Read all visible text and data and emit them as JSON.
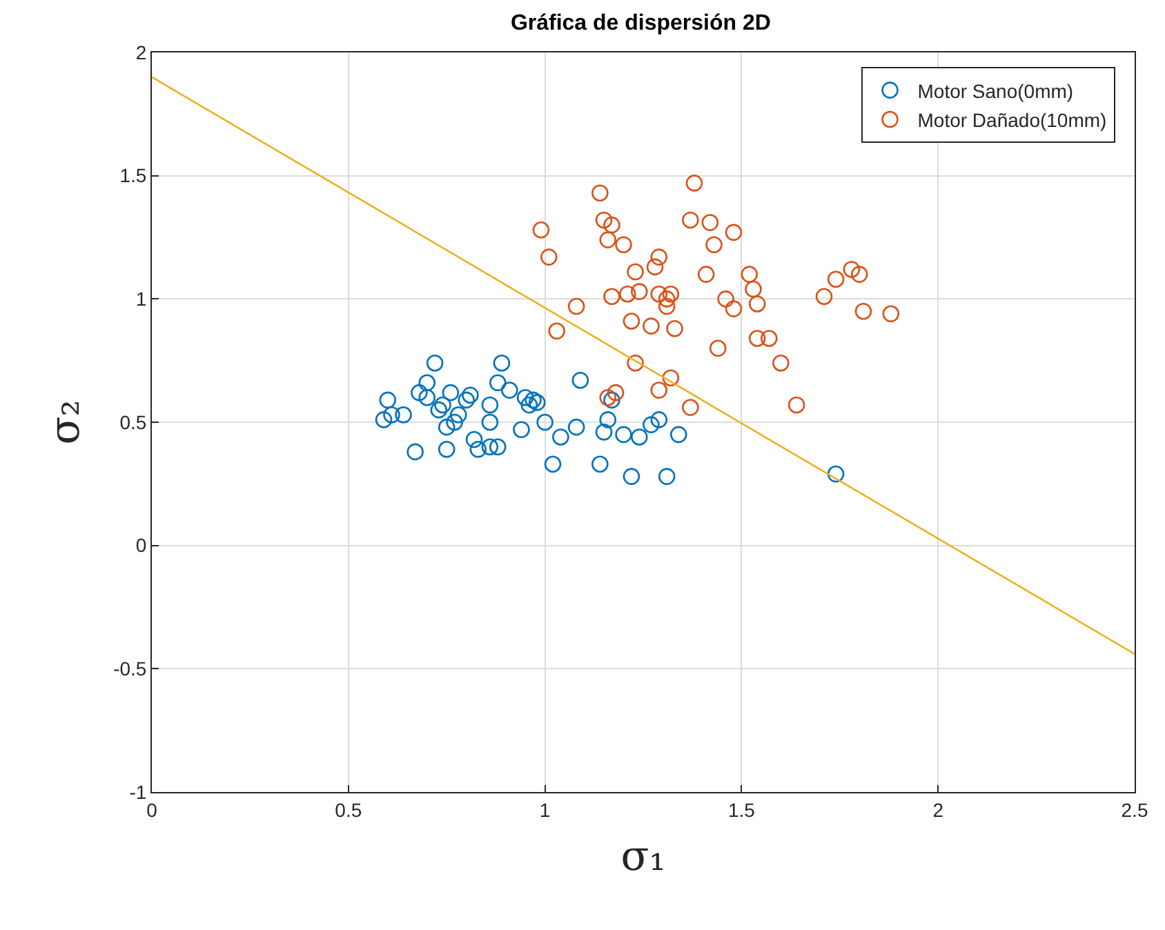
{
  "chart_data": {
    "type": "scatter",
    "title": "Gráfica de dispersión 2D",
    "xlabel": "σ₁",
    "ylabel": "σ₂",
    "xlim": [
      0,
      2.5
    ],
    "xticks": [
      0,
      0.5,
      1,
      1.5,
      2,
      2.5
    ],
    "ylim": [
      -1,
      2
    ],
    "yticks": [
      -1,
      -0.5,
      0,
      0.5,
      1,
      1.5,
      2
    ],
    "grid": true,
    "legend": "top right",
    "series": [
      {
        "name": "Motor Sano(0mm)",
        "color": "#0072bd",
        "marker": "circle",
        "x": [
          0.59,
          0.6,
          0.61,
          0.64,
          0.67,
          0.68,
          0.7,
          0.7,
          0.72,
          0.73,
          0.74,
          0.75,
          0.75,
          0.76,
          0.77,
          0.78,
          0.8,
          0.81,
          0.82,
          0.83,
          0.86,
          0.86,
          0.86,
          0.88,
          0.88,
          0.89,
          0.91,
          0.94,
          0.95,
          0.96,
          0.97,
          0.98,
          1.0,
          1.02,
          1.04,
          1.08,
          1.09,
          1.14,
          1.15,
          1.16,
          1.17,
          1.2,
          1.22,
          1.24,
          1.27,
          1.29,
          1.31,
          1.34,
          1.74
        ],
        "values": [
          0.51,
          0.59,
          0.53,
          0.53,
          0.38,
          0.62,
          0.6,
          0.66,
          0.74,
          0.55,
          0.57,
          0.48,
          0.39,
          0.62,
          0.5,
          0.53,
          0.59,
          0.61,
          0.43,
          0.39,
          0.4,
          0.5,
          0.57,
          0.4,
          0.66,
          0.74,
          0.63,
          0.47,
          0.6,
          0.57,
          0.59,
          0.58,
          0.5,
          0.33,
          0.44,
          0.48,
          0.67,
          0.33,
          0.46,
          0.51,
          0.59,
          0.45,
          0.28,
          0.44,
          0.49,
          0.51,
          0.28,
          0.45,
          0.29
        ]
      },
      {
        "name": "Motor Dañado(10mm)",
        "color": "#d95319",
        "marker": "circle",
        "x": [
          0.99,
          1.01,
          1.03,
          1.08,
          1.14,
          1.15,
          1.16,
          1.17,
          1.17,
          1.18,
          1.16,
          1.2,
          1.21,
          1.22,
          1.23,
          1.23,
          1.24,
          1.27,
          1.28,
          1.29,
          1.29,
          1.29,
          1.31,
          1.31,
          1.32,
          1.32,
          1.33,
          1.37,
          1.38,
          1.37,
          1.41,
          1.42,
          1.43,
          1.44,
          1.46,
          1.48,
          1.48,
          1.52,
          1.53,
          1.54,
          1.54,
          1.57,
          1.6,
          1.64,
          1.71,
          1.74,
          1.78,
          1.8,
          1.81,
          1.88
        ],
        "values": [
          1.28,
          1.17,
          0.87,
          0.97,
          1.43,
          1.32,
          1.24,
          1.3,
          1.01,
          0.62,
          0.6,
          1.22,
          1.02,
          0.91,
          1.11,
          0.74,
          1.03,
          0.89,
          1.13,
          1.17,
          1.02,
          0.63,
          0.97,
          1.0,
          0.68,
          1.02,
          0.88,
          1.32,
          1.47,
          0.56,
          1.1,
          1.31,
          1.22,
          0.8,
          1.0,
          0.96,
          1.27,
          1.1,
          1.04,
          0.98,
          0.84,
          0.84,
          0.74,
          0.57,
          1.01,
          1.08,
          1.12,
          1.1,
          0.95,
          0.94
        ]
      },
      {
        "type": "line",
        "color": "#edb120",
        "marker": "none",
        "x": [
          0,
          2.5
        ],
        "values": [
          1.9,
          -0.44
        ]
      }
    ]
  }
}
